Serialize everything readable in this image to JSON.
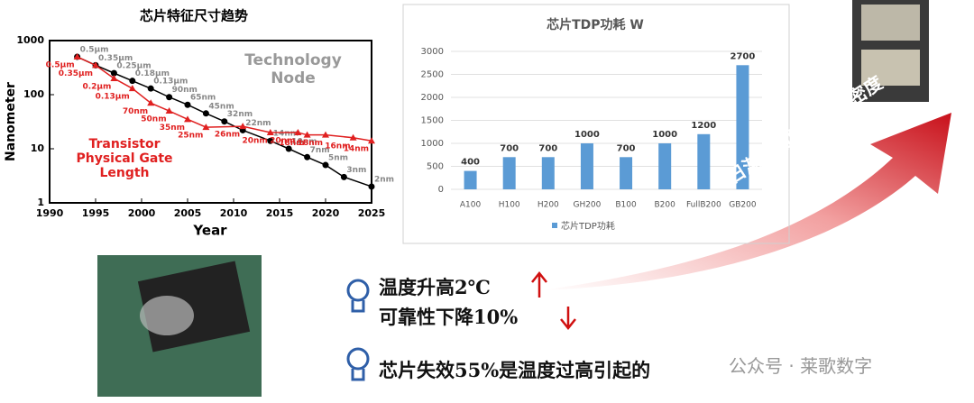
{
  "chart_data": [
    {
      "type": "line",
      "title": "芯片特征尺寸趋势",
      "x_label": "Year",
      "y_label": "Nanometer",
      "yscale": "log",
      "xlim": [
        1990,
        2025
      ],
      "xticks": [
        1990,
        1995,
        2000,
        2005,
        2010,
        2015,
        2020,
        2025
      ],
      "ylim": [
        1,
        1000
      ],
      "yticks": [
        1,
        10,
        100,
        1000
      ],
      "series": [
        {
          "name": "Technology Node",
          "color": "#000000",
          "x": [
            1993,
            1995,
            1997,
            1999,
            2001,
            2003,
            2005,
            2007,
            2009,
            2011,
            2014,
            2016,
            2018,
            2020,
            2022,
            2025
          ],
          "values": [
            500,
            350,
            250,
            180,
            130,
            90,
            65,
            45,
            32,
            22,
            14,
            10,
            7,
            5,
            3,
            2
          ],
          "value_labels": [
            "0.5μm",
            "0.35μm",
            "0.25μm",
            "0.18μm",
            "0.13μm",
            "90nm",
            "65nm",
            "45nm",
            "32nm",
            "22nm",
            "14nm",
            "10nm",
            "7nm",
            "5nm",
            "3nm",
            "2nm"
          ]
        },
        {
          "name": "Transistor Physical Gate Length",
          "color": "#e02020",
          "x": [
            1993,
            1995,
            1997,
            1999,
            2001,
            2003,
            2005,
            2007,
            2011,
            2014,
            2017,
            2018,
            2020,
            2023,
            2025
          ],
          "values": [
            500,
            350,
            200,
            130,
            70,
            50,
            35,
            25,
            26,
            20,
            20,
            18,
            18,
            16,
            14
          ],
          "value_labels": [
            "0.5μm",
            "0.35μm",
            "0.2μm",
            "0.13μm",
            "70nm",
            "50nm",
            "35nm",
            "25nm",
            "26nm",
            "20nm",
            "20nm",
            "18nm",
            "18nm",
            "16nm",
            "14nm"
          ]
        }
      ]
    },
    {
      "type": "bar",
      "title": "芯片TDP功耗 W",
      "categories": [
        "A100",
        "H100",
        "H200",
        "GH200",
        "B100",
        "B200",
        "FullB200",
        "GB200"
      ],
      "series": [
        {
          "name": "芯片TDP功耗",
          "color": "#5b9bd5",
          "values": [
            400,
            700,
            700,
            1000,
            700,
            1000,
            1200,
            2700
          ]
        }
      ],
      "ylim": [
        0,
        3000
      ],
      "yticks": [
        0,
        500,
        1000,
        1500,
        2000,
        2500,
        3000
      ]
    }
  ],
  "arrow_text": "日渐增加的高热流密度",
  "bullets": [
    "温度升高2℃",
    "可靠性下降10%",
    "芯片失效55%是温度过高引起的"
  ],
  "watermark": "公众号 · 莱歌数字"
}
